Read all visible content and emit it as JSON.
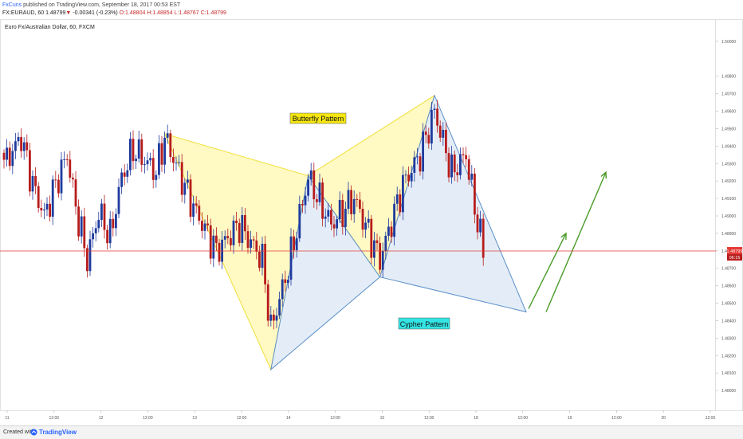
{
  "header": {
    "user": "FxCuns",
    "published_line": "published on TradingView.com, September 18, 2017 00:53 EST",
    "symbol_line": "FX:EURAUD, 60",
    "last_price": "1.48799",
    "change": "-0.00341 (-0.23%)",
    "ohlc": "O:1.48804 H:1.48854 L:1.48767 C:1.48799"
  },
  "chart_title": "Euro Fx/Australian Dollar, 60, FXCM",
  "footer": {
    "created": "Created with",
    "brand": "TradingView"
  },
  "labels": {
    "butterfly": "Butterfly Pattern",
    "cypher": "Cypher Pattern"
  },
  "price_tag": "1.48799",
  "timer_tag": "06:15",
  "colors": {
    "bull": "#1e3a9e",
    "bear": "#b71c1c",
    "butterfly_fill": "#fff8b8",
    "butterfly_stroke": "#f0e03a",
    "cypher_fill": "#dde8f5",
    "cypher_stroke": "#5b8fc9",
    "arrow": "#4a9a2a",
    "price_line": "#e53935",
    "butterfly_label_bg": "#f5e60f",
    "cypher_label_bg": "#33e5e5"
  },
  "chart_data": {
    "type": "candlestick",
    "ylim": [
      1.479,
      1.501
    ],
    "y_ticks": [
      "1.50000",
      "1.49800",
      "1.49700",
      "1.49600",
      "1.49500",
      "1.49400",
      "1.49300",
      "1.49200",
      "1.49100",
      "1.49000",
      "1.48900",
      "1.48800",
      "1.48700",
      "1.48600",
      "1.48500",
      "1.48400",
      "1.48300",
      "1.48200",
      "1.48100",
      "1.48000"
    ],
    "x_ticks": [
      "11",
      "12:00",
      "12",
      "12:00",
      "13",
      "12:00",
      "14",
      "12:00",
      "15",
      "12:00",
      "18",
      "12:00",
      "19",
      "12:00",
      "20",
      "12:00"
    ],
    "price_line": 1.48799,
    "segments": [
      {
        "name": "pre",
        "n": 57,
        "anchors": [
          [
            0,
            1.493
          ],
          [
            6,
            1.4945
          ],
          [
            10,
            1.4918
          ],
          [
            14,
            1.49
          ],
          [
            18,
            1.4918
          ],
          [
            22,
            1.4935
          ],
          [
            25,
            1.4905
          ],
          [
            29,
            1.4875
          ],
          [
            33,
            1.4902
          ],
          [
            37,
            1.4888
          ],
          [
            41,
            1.4922
          ],
          [
            45,
            1.4938
          ],
          [
            49,
            1.4932
          ],
          [
            53,
            1.4925
          ],
          [
            56,
            1.4945
          ]
        ]
      },
      {
        "name": "leg1",
        "n": 38,
        "anchors": [
          [
            0,
            1.4945
          ],
          [
            10,
            1.4905
          ],
          [
            18,
            1.488
          ],
          [
            26,
            1.4895
          ],
          [
            34,
            1.4875
          ],
          [
            37,
            1.4835
          ]
        ]
      },
      {
        "name": "leg2",
        "n": 14,
        "anchors": [
          [
            0,
            1.4835
          ],
          [
            6,
            1.487
          ],
          [
            13,
            1.4922
          ]
        ]
      },
      {
        "name": "leg3",
        "n": 26,
        "anchors": [
          [
            0,
            1.4922
          ],
          [
            8,
            1.4895
          ],
          [
            16,
            1.491
          ],
          [
            25,
            1.4875
          ]
        ]
      },
      {
        "name": "leg4",
        "n": 20,
        "anchors": [
          [
            0,
            1.4875
          ],
          [
            8,
            1.4918
          ],
          [
            14,
            1.4935
          ],
          [
            19,
            1.496
          ]
        ]
      },
      {
        "name": "post",
        "n": 18,
        "anchors": [
          [
            0,
            1.496
          ],
          [
            6,
            1.4925
          ],
          [
            11,
            1.4935
          ],
          [
            14,
            1.4905
          ],
          [
            17,
            1.488
          ]
        ]
      }
    ],
    "butterfly": {
      "X": 1.4947,
      "A": 1.4923,
      "B": 1.4969,
      "C": 1.4812
    },
    "cypher": {
      "X": 1.4812,
      "A": 1.4923,
      "B": 1.4865,
      "C": 1.4969,
      "D": 1.4845
    }
  }
}
